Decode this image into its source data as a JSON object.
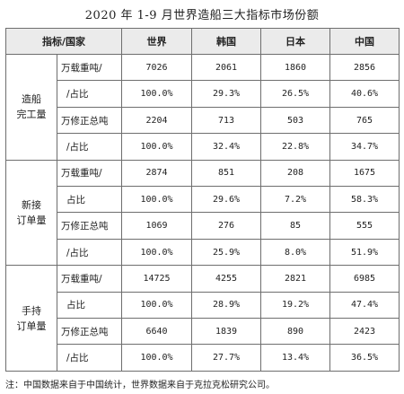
{
  "title": "2020 年 1-9 月世界造船三大指标市场份额",
  "header": [
    "指标/国家",
    "世界",
    "韩国",
    "日本",
    "中国"
  ],
  "groups": [
    {
      "category": [
        "造船",
        "完工量"
      ],
      "rows": [
        {
          "label": "万载重吨/",
          "values": [
            "7026",
            "2061",
            "1860",
            "2856"
          ]
        },
        {
          "label": "/占比",
          "values": [
            "100.0%",
            "29.3%",
            "26.5%",
            "40.6%"
          ]
        },
        {
          "label": "万修正总吨",
          "values": [
            "2204",
            "713",
            "503",
            "765"
          ]
        },
        {
          "label": "/占比",
          "values": [
            "100.0%",
            "32.4%",
            "22.8%",
            "34.7%"
          ]
        }
      ]
    },
    {
      "category": [
        "新接",
        "订单量"
      ],
      "rows": [
        {
          "label": "万载重吨/",
          "values": [
            "2874",
            "851",
            "208",
            "1675"
          ]
        },
        {
          "label": "占比",
          "values": [
            "100.0%",
            "29.6%",
            "7.2%",
            "58.3%"
          ]
        },
        {
          "label": "万修正总吨",
          "values": [
            "1069",
            "276",
            "85",
            "555"
          ]
        },
        {
          "label": "/占比",
          "values": [
            "100.0%",
            "25.9%",
            "8.0%",
            "51.9%"
          ]
        }
      ]
    },
    {
      "category": [
        "手持",
        "订单量"
      ],
      "rows": [
        {
          "label": "万载重吨/",
          "values": [
            "14725",
            "4255",
            "2821",
            "6985"
          ]
        },
        {
          "label": "占比",
          "values": [
            "100.0%",
            "28.9%",
            "19.2%",
            "47.4%"
          ]
        },
        {
          "label": "万修正总吨",
          "values": [
            "6640",
            "1839",
            "890",
            "2423"
          ]
        },
        {
          "label": "/占比",
          "values": [
            "100.0%",
            "27.7%",
            "13.4%",
            "36.5%"
          ]
        }
      ]
    }
  ],
  "note": "注：中国数据来自于中国统计，世界数据来自于克拉克松研究公司。"
}
